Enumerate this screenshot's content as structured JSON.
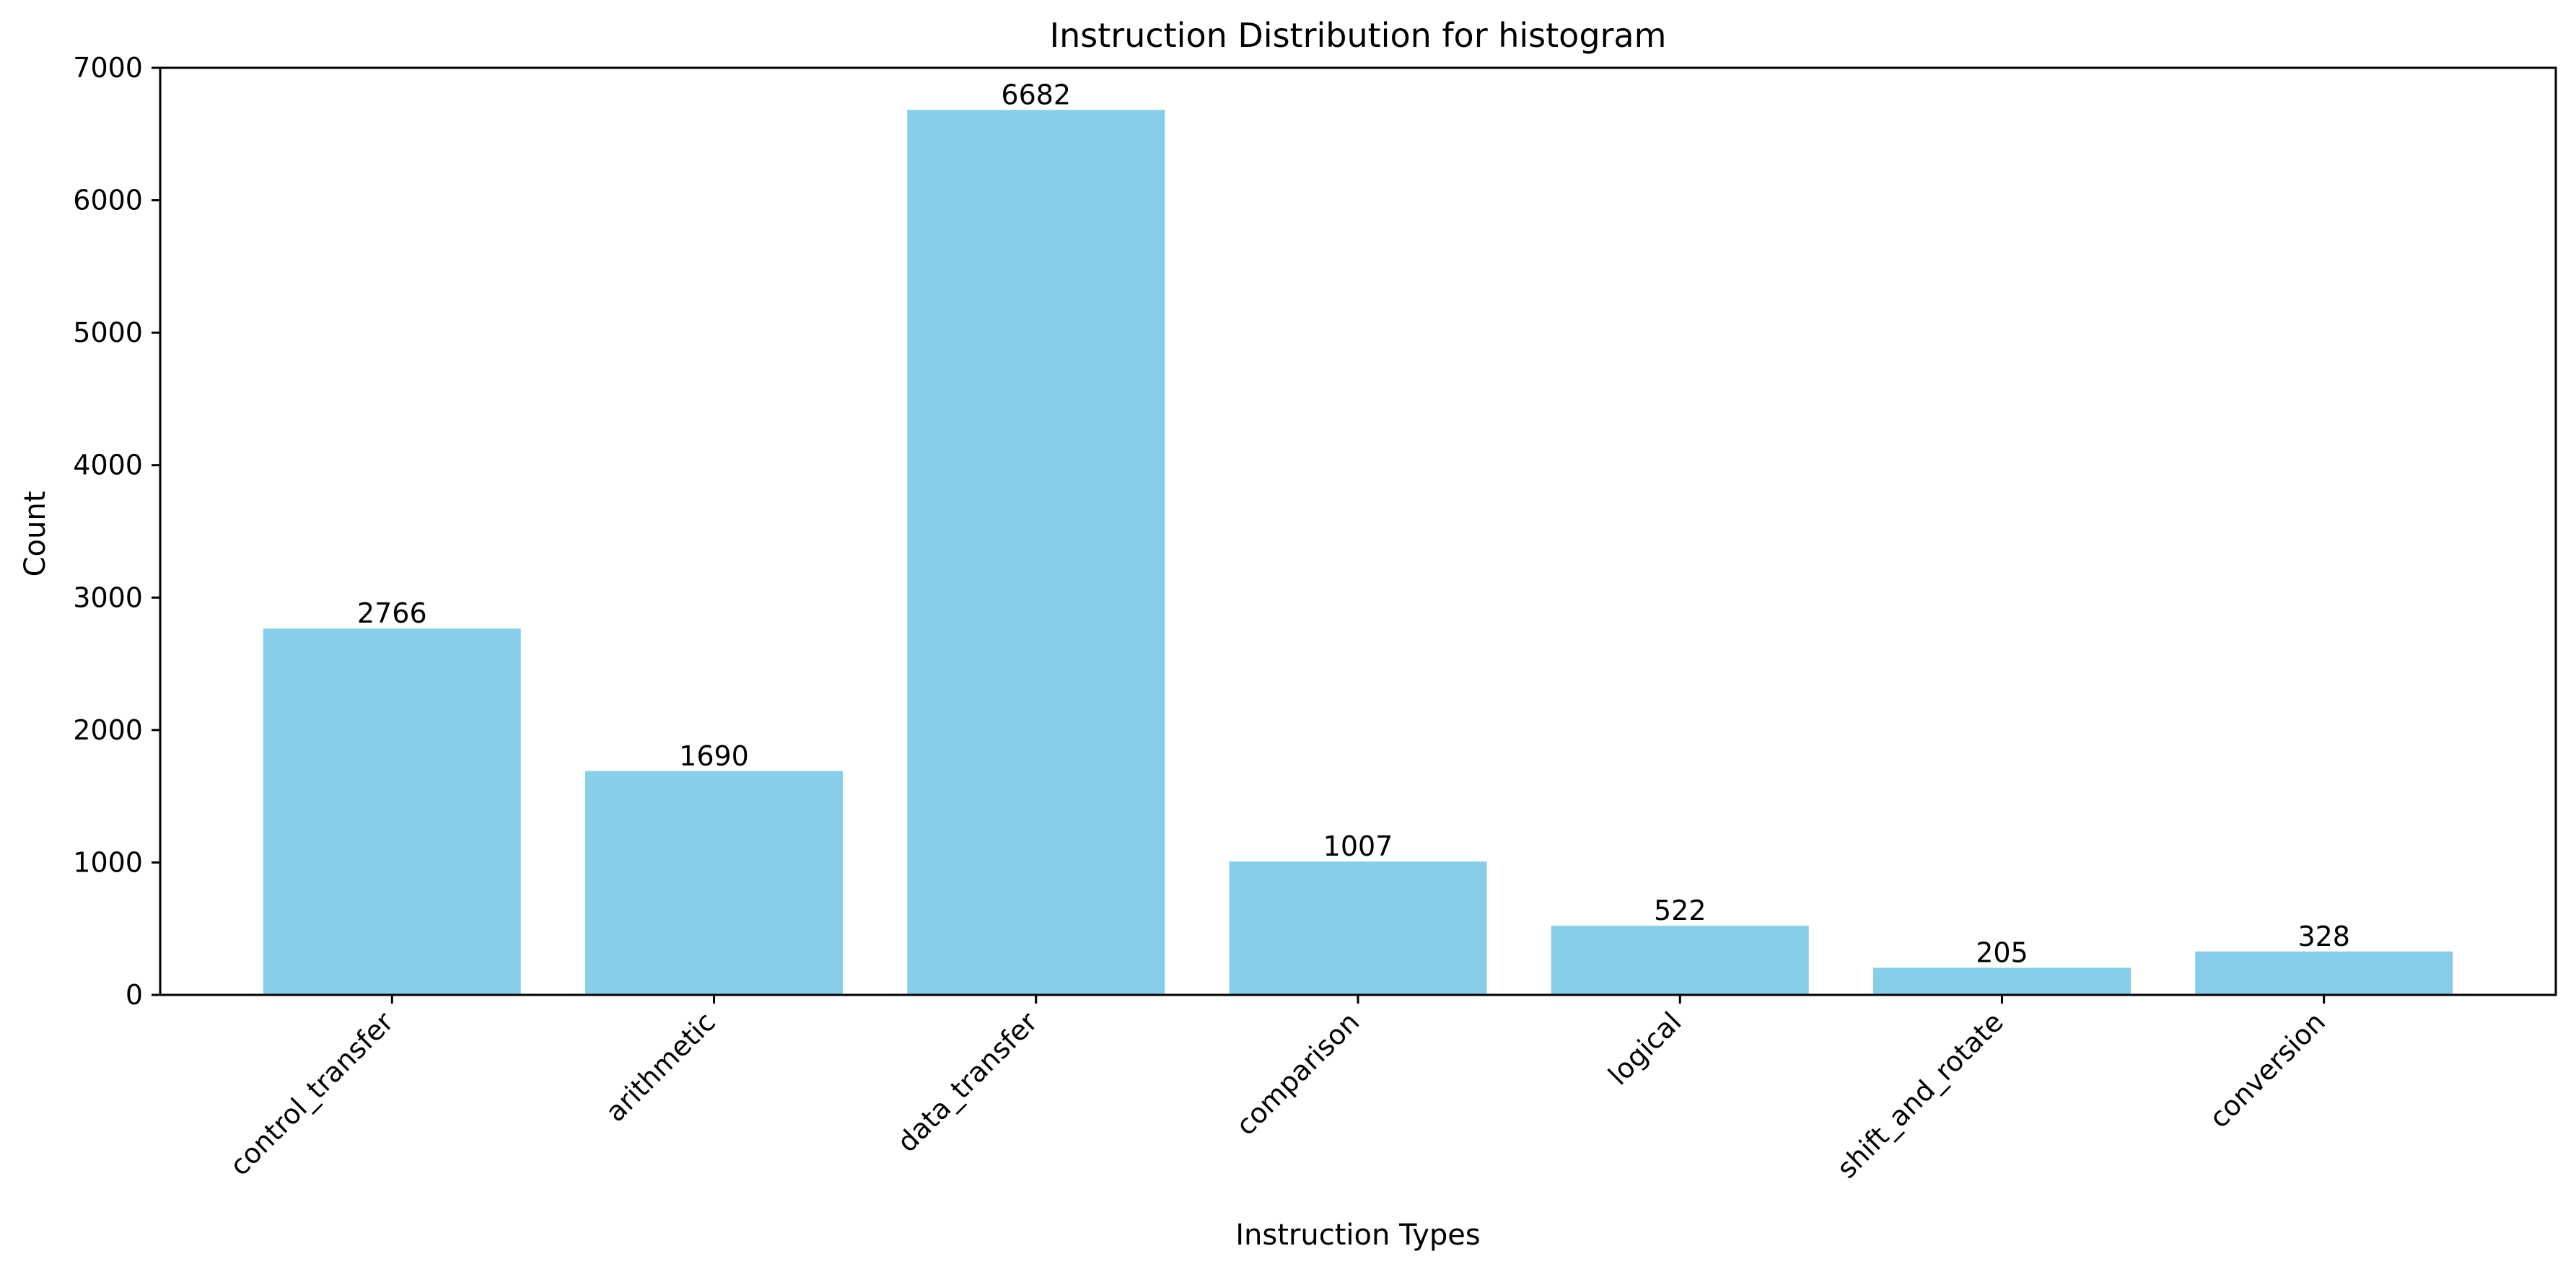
{
  "chart_data": {
    "type": "bar",
    "title": "Instruction Distribution for histogram",
    "xlabel": "Instruction Types",
    "ylabel": "Count",
    "categories": [
      "control_transfer",
      "arithmetic",
      "data_transfer",
      "comparison",
      "logical",
      "shift_and_rotate",
      "conversion"
    ],
    "values": [
      2766,
      1690,
      6682,
      1007,
      522,
      205,
      328
    ],
    "ylim": [
      0,
      7000
    ],
    "yticks": [
      0,
      1000,
      2000,
      3000,
      4000,
      5000,
      6000,
      7000
    ],
    "bar_color": "#87ceeb",
    "grid": false,
    "data_labels": true
  }
}
